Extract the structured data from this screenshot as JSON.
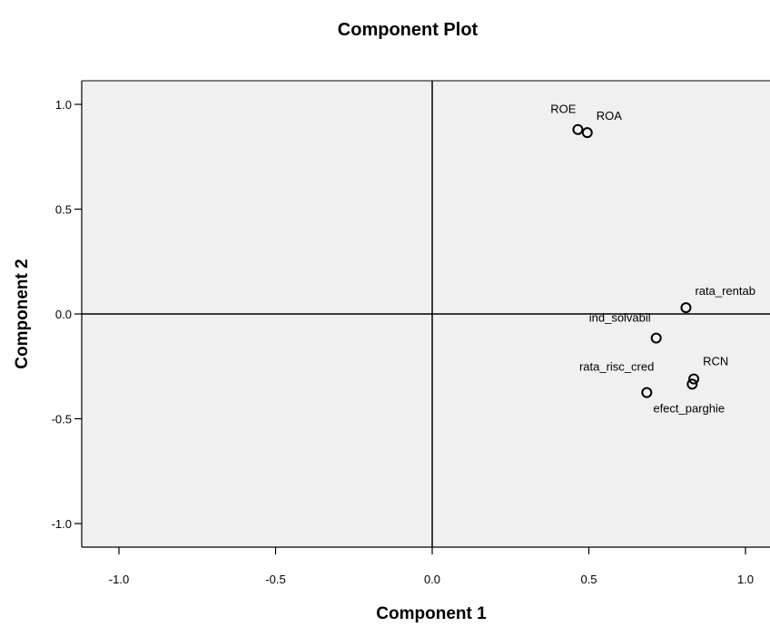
{
  "chart_data": {
    "type": "scatter",
    "title": "Component Plot",
    "xlabel": "Component 1",
    "ylabel": "Component 2",
    "xlim": [
      -1.1,
      1.1
    ],
    "ylim": [
      -1.1,
      1.1
    ],
    "x_ticks": [
      -1.0,
      -0.5,
      0.0,
      0.5,
      1.0
    ],
    "y_ticks": [
      -1.0,
      -0.5,
      0.0,
      0.5,
      1.0
    ],
    "x_tick_labels": [
      "-1.0",
      "-0.5",
      "0.0",
      "0.5",
      "1.0"
    ],
    "y_tick_labels": [
      "-1.0",
      "-0.5",
      "0.0",
      "0.5",
      "1.0"
    ],
    "reference_lines": {
      "x": 0,
      "y": 0
    },
    "grid": false,
    "legend": "none",
    "plot_background": "#f0f0f0",
    "marker_color": "#000000",
    "points": [
      {
        "label": "ROE",
        "x": 0.465,
        "y": 0.88
      },
      {
        "label": "ROA",
        "x": 0.495,
        "y": 0.865
      },
      {
        "label": "rata_rentab",
        "x": 0.81,
        "y": 0.03
      },
      {
        "label": "ind_solvabil",
        "x": 0.715,
        "y": -0.115
      },
      {
        "label": "rata_risc_cred",
        "x": 0.685,
        "y": -0.375
      },
      {
        "label": "RCN",
        "x": 0.835,
        "y": -0.31
      },
      {
        "label": "efect_parghie",
        "x": 0.83,
        "y": -0.335
      }
    ]
  }
}
